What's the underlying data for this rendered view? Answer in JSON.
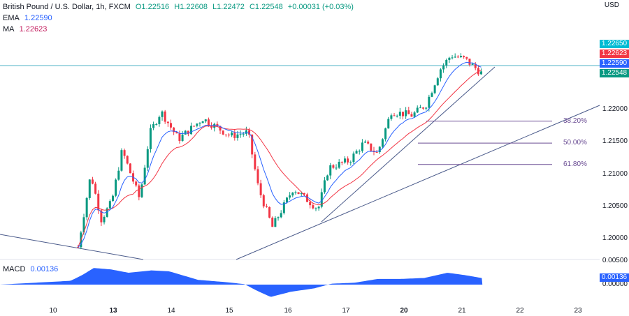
{
  "header": {
    "symbol": "British Pound / U.S. Dollar, 1h, FXCM",
    "open": "O1.22516",
    "high": "H1.22608",
    "low": "L1.22472",
    "close": "C1.22548",
    "change": "+0.00031 (+0.03%)",
    "ema_label": "EMA",
    "ema_value": "1.22590",
    "ma_label": "MA",
    "ma_value": "1.22623",
    "macd_label": "MACD",
    "macd_value": "0.00136"
  },
  "price_scale": {
    "currency": "USD",
    "ticks": [
      "1.22000",
      "1.21500",
      "1.21000",
      "1.20500",
      "1.20000"
    ],
    "macd_ticks": [
      "0.00500",
      "0.00000"
    ],
    "labels": [
      {
        "text": "1.22650",
        "color": "#00bcd4"
      },
      {
        "text": "1.22623",
        "color": "#f23645"
      },
      {
        "text": "1.22590",
        "color": "#2962ff"
      },
      {
        "text": "1.22548",
        "color": "#089981"
      }
    ],
    "macd_label": "0.00136"
  },
  "time_axis": [
    "10",
    "13",
    "14",
    "15",
    "16",
    "17",
    "20",
    "21",
    "22",
    "23"
  ],
  "fib_levels": [
    {
      "label": "38.20%",
      "price": 1.2182
    },
    {
      "label": "50.00%",
      "price": 1.2148
    },
    {
      "label": "61.80%",
      "price": 1.2115
    }
  ],
  "colors": {
    "up": "#089981",
    "down": "#f23645",
    "ema": "#2962ff",
    "ma": "#f23645",
    "macd": "#2962ff",
    "hline": "#4fb3c6",
    "trend": "#4a5a8a"
  },
  "chart_data": {
    "type": "candlestick",
    "title": "British Pound / U.S. Dollar, 1h, FXCM",
    "x_ticks": [
      "10",
      "13",
      "14",
      "15",
      "16",
      "17",
      "20",
      "21",
      "22",
      "23"
    ],
    "ylim": [
      1.1975,
      1.2305
    ],
    "price_path": [
      [
        0.43,
        1.1987
      ],
      [
        0.65,
        1.21
      ],
      [
        0.83,
        1.203
      ],
      [
        1.01,
        1.2057
      ],
      [
        1.19,
        1.2137
      ],
      [
        1.49,
        1.2062
      ],
      [
        1.67,
        1.2164
      ],
      [
        1.86,
        1.2197
      ],
      [
        2.16,
        1.2154
      ],
      [
        2.58,
        1.2186
      ],
      [
        3.06,
        1.2159
      ],
      [
        3.36,
        1.2165
      ],
      [
        3.54,
        1.2078
      ],
      [
        3.78,
        1.2018
      ],
      [
        4.14,
        1.2078
      ],
      [
        4.57,
        1.2046
      ],
      [
        4.75,
        1.211
      ],
      [
        5.11,
        1.2121
      ],
      [
        5.35,
        1.2148
      ],
      [
        5.59,
        1.2132
      ],
      [
        5.83,
        1.2197
      ],
      [
        6.19,
        1.2191
      ],
      [
        6.43,
        1.2208
      ],
      [
        6.67,
        1.2262
      ],
      [
        6.86,
        1.2284
      ],
      [
        7.1,
        1.2278
      ],
      [
        7.4,
        1.2255
      ]
    ],
    "macd": [
      [
        -0.92,
        0.0
      ],
      [
        0.3,
        0.0008
      ],
      [
        0.5,
        0.002
      ],
      [
        0.7,
        0.0035
      ],
      [
        1.0,
        0.0032
      ],
      [
        1.3,
        0.0025
      ],
      [
        1.7,
        0.003
      ],
      [
        2.0,
        0.0028
      ],
      [
        2.5,
        0.001
      ],
      [
        3.0,
        0.0005
      ],
      [
        3.3,
        0.0001
      ],
      [
        3.5,
        -0.0012
      ],
      [
        3.75,
        -0.0026
      ],
      [
        4.1,
        -0.0015
      ],
      [
        4.5,
        -0.0008
      ],
      [
        4.8,
        0.0002
      ],
      [
        5.2,
        0.0004
      ],
      [
        5.6,
        0.0012
      ],
      [
        6.0,
        0.0012
      ],
      [
        6.4,
        0.0014
      ],
      [
        6.8,
        0.0025
      ],
      [
        7.1,
        0.002
      ],
      [
        7.4,
        0.00136
      ]
    ],
    "macd_ylim": [
      -0.0035,
      0.0055
    ]
  }
}
